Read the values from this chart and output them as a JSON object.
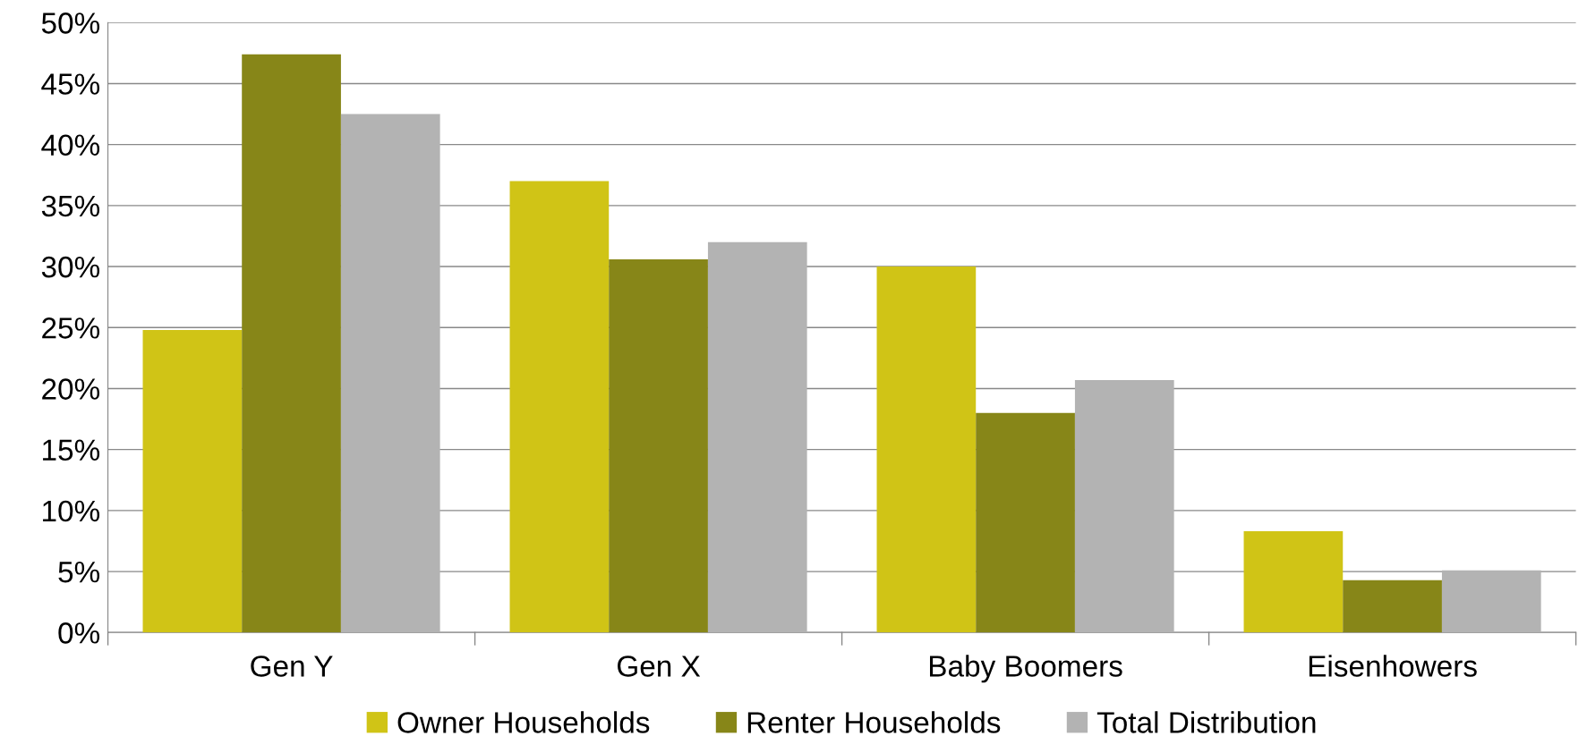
{
  "chart_data": {
    "type": "bar",
    "categories": [
      "Gen Y",
      "Gen X",
      "Baby Boomers",
      "Eisenhowers"
    ],
    "series": [
      {
        "name": "Owner Households",
        "color": "#d0c416",
        "values": [
          24.8,
          37.0,
          30.0,
          8.3
        ]
      },
      {
        "name": "Renter Households",
        "color": "#878618",
        "values": [
          47.4,
          30.6,
          18.0,
          4.3
        ]
      },
      {
        "name": "Total Distribution",
        "color": "#b3b3b3",
        "values": [
          42.5,
          32.0,
          20.7,
          5.1
        ]
      }
    ],
    "ylim": [
      0,
      50
    ],
    "yticks": [
      {
        "value": 0,
        "label": "0%"
      },
      {
        "value": 5,
        "label": "5%"
      },
      {
        "value": 10,
        "label": "10%"
      },
      {
        "value": 15,
        "label": "15%"
      },
      {
        "value": 20,
        "label": "20%"
      },
      {
        "value": 25,
        "label": "25%"
      },
      {
        "value": 30,
        "label": "30%"
      },
      {
        "value": 35,
        "label": "35%"
      },
      {
        "value": 40,
        "label": "40%"
      },
      {
        "value": 45,
        "label": "45%"
      },
      {
        "value": 50,
        "label": "50%"
      }
    ],
    "grid": "y",
    "legend": "bottom"
  }
}
